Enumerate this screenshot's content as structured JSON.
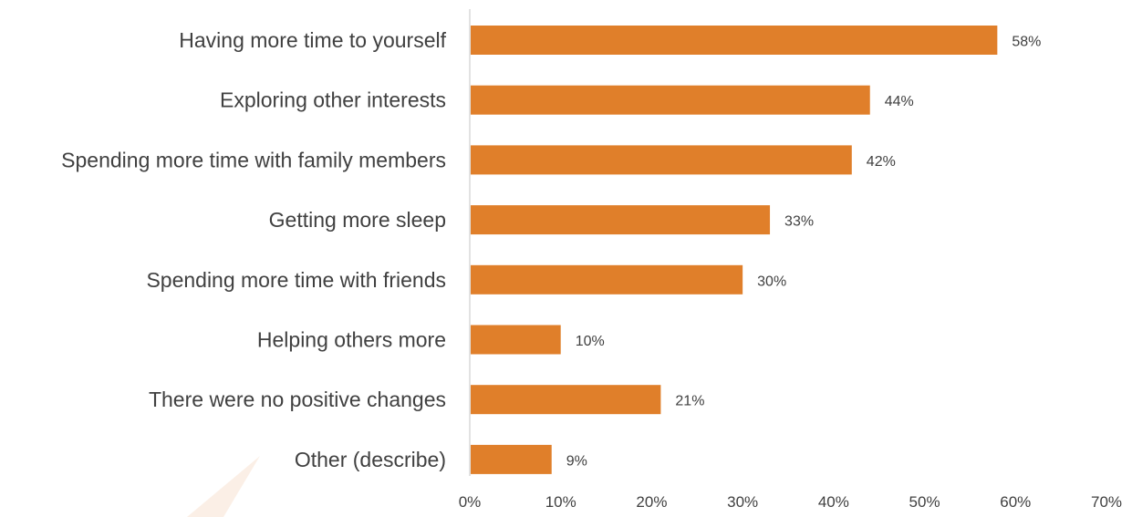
{
  "chart_data": {
    "type": "bar",
    "orientation": "horizontal",
    "title": "",
    "xlabel": "",
    "ylabel": "",
    "categories": [
      "Having more time to yourself",
      "Exploring other interests",
      "Spending more time with family members",
      "Getting more sleep",
      "Spending more time with friends",
      "Helping others more",
      "There were no positive changes",
      "Other (describe)"
    ],
    "values": [
      58,
      44,
      42,
      33,
      30,
      10,
      21,
      9
    ],
    "value_labels": [
      "58%",
      "44%",
      "42%",
      "33%",
      "30%",
      "10%",
      "21%",
      "9%"
    ],
    "xlim": [
      0,
      70
    ],
    "xticks": [
      "0%",
      "10%",
      "20%",
      "30%",
      "40%",
      "50%",
      "60%",
      "70%"
    ],
    "grid": false,
    "legend": "none",
    "bar_color": "#E07F2A",
    "axis_color": "#D9D9D9"
  }
}
